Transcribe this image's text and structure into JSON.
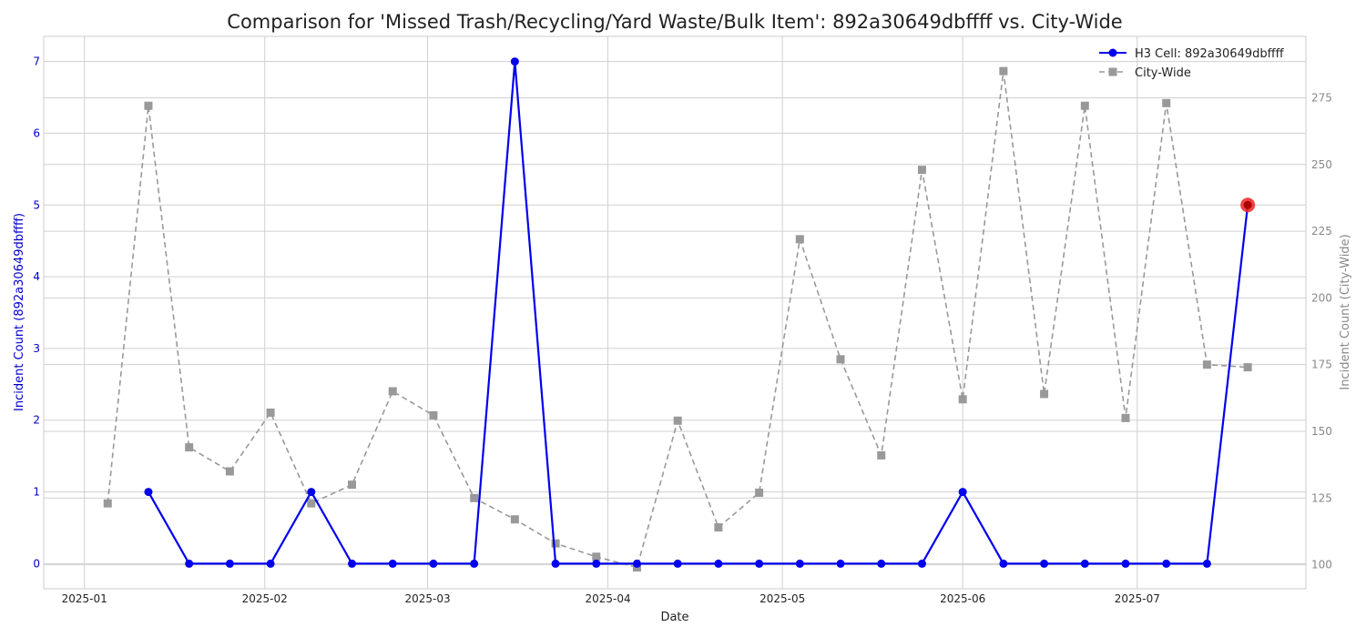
{
  "chart_data": {
    "type": "line",
    "title": "Comparison for 'Missed Trash/Recycling/Yard Waste/Bulk Item': 892a30649dbffff vs. City-Wide",
    "xlabel": "Date",
    "ylabel_left": "Incident Count (892a30649dbffff)",
    "ylabel_right": "Incident Count (City-Wide)",
    "x_ticks": [
      "2025-01",
      "2025-02",
      "2025-03",
      "2025-04",
      "2025-05",
      "2025-06",
      "2025-07"
    ],
    "x_tick_dates": [
      "2025-01-01",
      "2025-02-01",
      "2025-03-01",
      "2025-04-01",
      "2025-05-01",
      "2025-06-01",
      "2025-07-01"
    ],
    "xlim": [
      "2024-12-25",
      "2025-07-30"
    ],
    "ylim_left": [
      -0.35,
      7.35
    ],
    "ylim_right": [
      91,
      298
    ],
    "y_ticks_left": [
      0,
      1,
      2,
      3,
      4,
      5,
      6,
      7
    ],
    "y_ticks_right": [
      100,
      125,
      150,
      175,
      200,
      225,
      250,
      275
    ],
    "grid": true,
    "legend_position": "top-right",
    "colors": {
      "h3": "#0000ee",
      "city": "#999999",
      "highlight": "#ee2222",
      "left_axis_text": "#0000cc",
      "right_axis_text": "#888888"
    },
    "series": [
      {
        "name": "H3 Cell: 892a30649dbffff",
        "axis": "left",
        "style": "solid",
        "marker": "circle",
        "x": [
          "2025-01-12",
          "2025-01-19",
          "2025-01-26",
          "2025-02-02",
          "2025-02-09",
          "2025-02-16",
          "2025-02-23",
          "2025-03-02",
          "2025-03-09",
          "2025-03-16",
          "2025-03-23",
          "2025-03-30",
          "2025-04-06",
          "2025-04-13",
          "2025-04-20",
          "2025-04-27",
          "2025-05-04",
          "2025-05-11",
          "2025-05-18",
          "2025-05-25",
          "2025-06-01",
          "2025-06-08",
          "2025-06-15",
          "2025-06-22",
          "2025-06-29",
          "2025-07-06",
          "2025-07-13",
          "2025-07-20"
        ],
        "values": [
          1,
          0,
          0,
          0,
          1,
          0,
          0,
          0,
          0,
          7,
          0,
          0,
          0,
          0,
          0,
          0,
          0,
          0,
          0,
          0,
          1,
          0,
          0,
          0,
          0,
          0,
          0,
          5
        ]
      },
      {
        "name": "City-Wide",
        "axis": "right",
        "style": "dashed",
        "marker": "square",
        "x": [
          "2025-01-05",
          "2025-01-12",
          "2025-01-19",
          "2025-01-26",
          "2025-02-02",
          "2025-02-09",
          "2025-02-16",
          "2025-02-23",
          "2025-03-02",
          "2025-03-09",
          "2025-03-16",
          "2025-03-23",
          "2025-03-30",
          "2025-04-06",
          "2025-04-13",
          "2025-04-20",
          "2025-04-27",
          "2025-05-04",
          "2025-05-11",
          "2025-05-18",
          "2025-05-25",
          "2025-06-01",
          "2025-06-08",
          "2025-06-15",
          "2025-06-22",
          "2025-06-29",
          "2025-07-06",
          "2025-07-13",
          "2025-07-20"
        ],
        "values": [
          123,
          272,
          144,
          135,
          157,
          123,
          130,
          165,
          156,
          125,
          117,
          108,
          103,
          99,
          154,
          114,
          127,
          222,
          177,
          141,
          248,
          162,
          285,
          164,
          272,
          155,
          273,
          175,
          174
        ]
      }
    ],
    "highlight_point": {
      "series": "H3 Cell: 892a30649dbffff",
      "x": "2025-07-20",
      "value": 5
    }
  }
}
